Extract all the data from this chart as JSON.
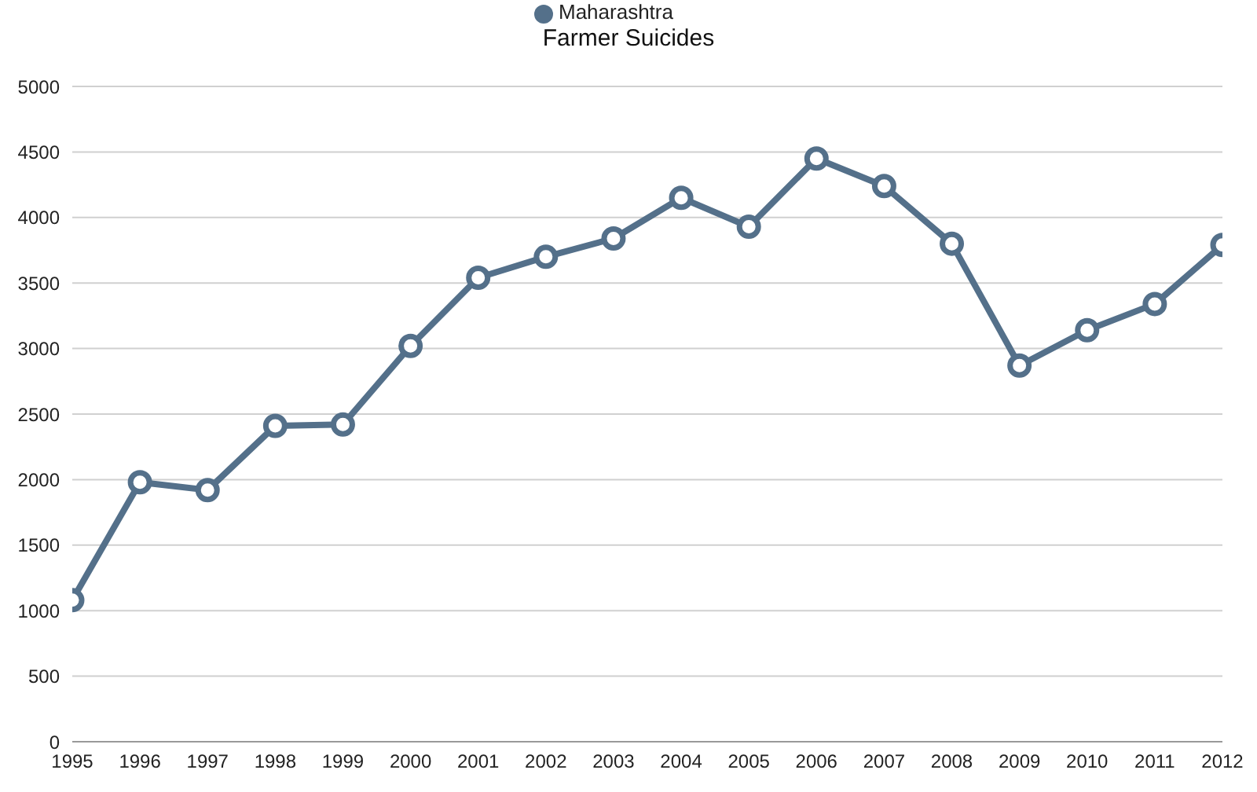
{
  "chart_data": {
    "type": "line",
    "title": "Farmer Suicides",
    "x": [
      1995,
      1996,
      1997,
      1998,
      1999,
      2000,
      2001,
      2002,
      2003,
      2004,
      2005,
      2006,
      2007,
      2008,
      2009,
      2010,
      2011,
      2012
    ],
    "series": [
      {
        "name": "Maharashtra",
        "color": "#54708a",
        "values": [
          1080,
          1980,
          1920,
          2410,
          2420,
          3020,
          3540,
          3700,
          3840,
          4150,
          3930,
          4450,
          4240,
          3800,
          2870,
          3140,
          3340,
          3790
        ]
      }
    ],
    "xlim": [
      1995,
      2012
    ],
    "xticks": [
      1995,
      1996,
      1997,
      1998,
      1999,
      2000,
      2001,
      2002,
      2003,
      2004,
      2005,
      2006,
      2007,
      2008,
      2009,
      2010,
      2011,
      2012
    ],
    "ylim": [
      0,
      5000
    ],
    "yticks": [
      0,
      500,
      1000,
      1500,
      2000,
      2500,
      3000,
      3500,
      4000,
      4500,
      5000
    ],
    "grid": "y",
    "legend": "top",
    "marker": "circle",
    "line_style": "solid"
  }
}
